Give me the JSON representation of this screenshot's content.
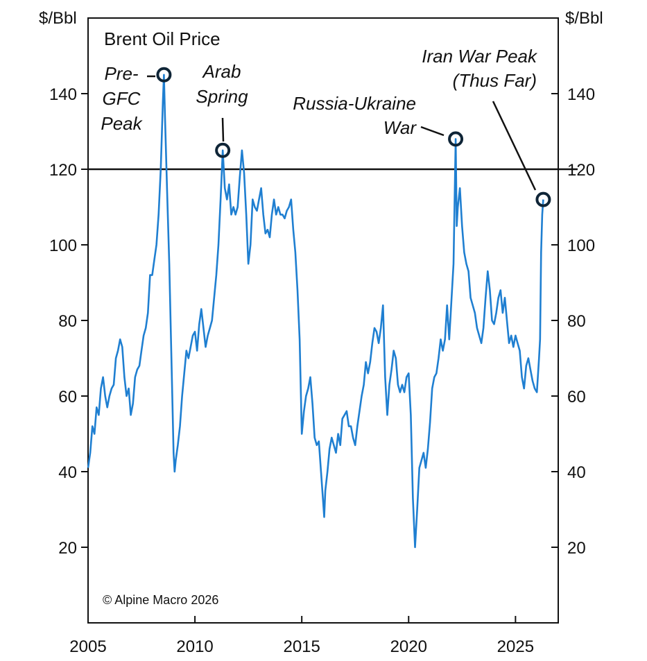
{
  "chart_data": {
    "type": "line",
    "title": "Brent Oil Price",
    "ylabel_left": "$/Bbl",
    "ylabel_right": "$/Bbl",
    "xlim": [
      2005.0,
      2027.0
    ],
    "ylim": [
      0,
      160
    ],
    "x_ticks": [
      2005,
      2010,
      2015,
      2020,
      2025
    ],
    "y_ticks": [
      20,
      40,
      60,
      80,
      100,
      120,
      140
    ],
    "reference_line": {
      "y": 120
    },
    "grid": false,
    "line_color": "#1f7fd1",
    "series": [
      {
        "points": [
          [
            2005.0,
            41
          ],
          [
            2005.1,
            45
          ],
          [
            2005.2,
            52
          ],
          [
            2005.3,
            50
          ],
          [
            2005.4,
            57
          ],
          [
            2005.5,
            55
          ],
          [
            2005.6,
            62
          ],
          [
            2005.7,
            65
          ],
          [
            2005.8,
            60
          ],
          [
            2005.9,
            57
          ],
          [
            2006.0,
            60
          ],
          [
            2006.1,
            62
          ],
          [
            2006.2,
            63
          ],
          [
            2006.3,
            70
          ],
          [
            2006.4,
            72
          ],
          [
            2006.5,
            75
          ],
          [
            2006.6,
            73
          ],
          [
            2006.7,
            65
          ],
          [
            2006.8,
            60
          ],
          [
            2006.9,
            62
          ],
          [
            2007.0,
            55
          ],
          [
            2007.1,
            58
          ],
          [
            2007.2,
            65
          ],
          [
            2007.3,
            67
          ],
          [
            2007.4,
            68
          ],
          [
            2007.5,
            72
          ],
          [
            2007.6,
            76
          ],
          [
            2007.7,
            78
          ],
          [
            2007.8,
            82
          ],
          [
            2007.9,
            92
          ],
          [
            2008.0,
            92
          ],
          [
            2008.1,
            96
          ],
          [
            2008.2,
            100
          ],
          [
            2008.3,
            108
          ],
          [
            2008.4,
            120
          ],
          [
            2008.5,
            138
          ],
          [
            2008.55,
            145
          ],
          [
            2008.6,
            134
          ],
          [
            2008.7,
            114
          ],
          [
            2008.8,
            95
          ],
          [
            2008.9,
            70
          ],
          [
            2009.0,
            45
          ],
          [
            2009.05,
            40
          ],
          [
            2009.1,
            43
          ],
          [
            2009.2,
            47
          ],
          [
            2009.3,
            52
          ],
          [
            2009.4,
            60
          ],
          [
            2009.5,
            66
          ],
          [
            2009.6,
            72
          ],
          [
            2009.7,
            70
          ],
          [
            2009.8,
            73
          ],
          [
            2009.9,
            76
          ],
          [
            2010.0,
            77
          ],
          [
            2010.1,
            72
          ],
          [
            2010.2,
            79
          ],
          [
            2010.3,
            83
          ],
          [
            2010.4,
            78
          ],
          [
            2010.5,
            73
          ],
          [
            2010.6,
            76
          ],
          [
            2010.7,
            78
          ],
          [
            2010.8,
            80
          ],
          [
            2010.9,
            86
          ],
          [
            2011.0,
            92
          ],
          [
            2011.1,
            100
          ],
          [
            2011.2,
            112
          ],
          [
            2011.3,
            125
          ],
          [
            2011.4,
            115
          ],
          [
            2011.5,
            112
          ],
          [
            2011.6,
            116
          ],
          [
            2011.7,
            108
          ],
          [
            2011.8,
            110
          ],
          [
            2011.9,
            108
          ],
          [
            2012.0,
            110
          ],
          [
            2012.1,
            118
          ],
          [
            2012.2,
            125
          ],
          [
            2012.3,
            119
          ],
          [
            2012.4,
            108
          ],
          [
            2012.5,
            95
          ],
          [
            2012.6,
            100
          ],
          [
            2012.7,
            112
          ],
          [
            2012.8,
            110
          ],
          [
            2012.9,
            109
          ],
          [
            2013.0,
            112
          ],
          [
            2013.1,
            115
          ],
          [
            2013.2,
            108
          ],
          [
            2013.3,
            103
          ],
          [
            2013.4,
            104
          ],
          [
            2013.5,
            102
          ],
          [
            2013.6,
            108
          ],
          [
            2013.7,
            112
          ],
          [
            2013.8,
            108
          ],
          [
            2013.9,
            110
          ],
          [
            2014.0,
            108
          ],
          [
            2014.1,
            108
          ],
          [
            2014.2,
            107
          ],
          [
            2014.3,
            109
          ],
          [
            2014.4,
            110
          ],
          [
            2014.5,
            112
          ],
          [
            2014.6,
            104
          ],
          [
            2014.7,
            98
          ],
          [
            2014.8,
            88
          ],
          [
            2014.9,
            75
          ],
          [
            2015.0,
            50
          ],
          [
            2015.1,
            56
          ],
          [
            2015.2,
            60
          ],
          [
            2015.3,
            62
          ],
          [
            2015.4,
            65
          ],
          [
            2015.5,
            58
          ],
          [
            2015.6,
            49
          ],
          [
            2015.7,
            47
          ],
          [
            2015.8,
            48
          ],
          [
            2015.9,
            40
          ],
          [
            2016.0,
            32
          ],
          [
            2016.05,
            28
          ],
          [
            2016.1,
            35
          ],
          [
            2016.2,
            40
          ],
          [
            2016.3,
            46
          ],
          [
            2016.4,
            49
          ],
          [
            2016.5,
            47
          ],
          [
            2016.6,
            45
          ],
          [
            2016.7,
            50
          ],
          [
            2016.8,
            47
          ],
          [
            2016.9,
            54
          ],
          [
            2017.0,
            55
          ],
          [
            2017.1,
            56
          ],
          [
            2017.2,
            52
          ],
          [
            2017.3,
            52
          ],
          [
            2017.4,
            49
          ],
          [
            2017.5,
            47
          ],
          [
            2017.6,
            52
          ],
          [
            2017.7,
            56
          ],
          [
            2017.8,
            60
          ],
          [
            2017.9,
            63
          ],
          [
            2018.0,
            69
          ],
          [
            2018.1,
            66
          ],
          [
            2018.2,
            69
          ],
          [
            2018.3,
            74
          ],
          [
            2018.4,
            78
          ],
          [
            2018.5,
            77
          ],
          [
            2018.6,
            74
          ],
          [
            2018.7,
            78
          ],
          [
            2018.8,
            84
          ],
          [
            2018.9,
            65
          ],
          [
            2019.0,
            55
          ],
          [
            2019.1,
            63
          ],
          [
            2019.2,
            67
          ],
          [
            2019.3,
            72
          ],
          [
            2019.4,
            70
          ],
          [
            2019.5,
            63
          ],
          [
            2019.6,
            61
          ],
          [
            2019.7,
            63
          ],
          [
            2019.8,
            61
          ],
          [
            2019.9,
            65
          ],
          [
            2020.0,
            66
          ],
          [
            2020.1,
            55
          ],
          [
            2020.2,
            33
          ],
          [
            2020.3,
            20
          ],
          [
            2020.4,
            30
          ],
          [
            2020.5,
            41
          ],
          [
            2020.6,
            43
          ],
          [
            2020.7,
            45
          ],
          [
            2020.8,
            41
          ],
          [
            2020.9,
            46
          ],
          [
            2021.0,
            53
          ],
          [
            2021.1,
            62
          ],
          [
            2021.2,
            65
          ],
          [
            2021.3,
            66
          ],
          [
            2021.4,
            70
          ],
          [
            2021.5,
            75
          ],
          [
            2021.6,
            72
          ],
          [
            2021.7,
            75
          ],
          [
            2021.8,
            84
          ],
          [
            2021.9,
            75
          ],
          [
            2022.0,
            85
          ],
          [
            2022.1,
            95
          ],
          [
            2022.2,
            128
          ],
          [
            2022.25,
            105
          ],
          [
            2022.3,
            110
          ],
          [
            2022.4,
            115
          ],
          [
            2022.5,
            105
          ],
          [
            2022.6,
            98
          ],
          [
            2022.7,
            95
          ],
          [
            2022.8,
            93
          ],
          [
            2022.9,
            86
          ],
          [
            2023.0,
            84
          ],
          [
            2023.1,
            82
          ],
          [
            2023.2,
            78
          ],
          [
            2023.3,
            76
          ],
          [
            2023.4,
            74
          ],
          [
            2023.5,
            78
          ],
          [
            2023.6,
            86
          ],
          [
            2023.7,
            93
          ],
          [
            2023.8,
            88
          ],
          [
            2023.9,
            80
          ],
          [
            2024.0,
            79
          ],
          [
            2024.1,
            82
          ],
          [
            2024.2,
            86
          ],
          [
            2024.3,
            88
          ],
          [
            2024.4,
            82
          ],
          [
            2024.5,
            86
          ],
          [
            2024.6,
            80
          ],
          [
            2024.7,
            74
          ],
          [
            2024.8,
            76
          ],
          [
            2024.9,
            73
          ],
          [
            2025.0,
            76
          ],
          [
            2025.1,
            74
          ],
          [
            2025.2,
            72
          ],
          [
            2025.3,
            65
          ],
          [
            2025.4,
            62
          ],
          [
            2025.5,
            68
          ],
          [
            2025.6,
            70
          ],
          [
            2025.7,
            67
          ],
          [
            2025.8,
            64
          ],
          [
            2025.9,
            62
          ],
          [
            2026.0,
            61
          ],
          [
            2026.1,
            70
          ],
          [
            2026.15,
            75
          ],
          [
            2026.2,
            98
          ],
          [
            2026.25,
            108
          ],
          [
            2026.3,
            112
          ]
        ]
      }
    ],
    "annotations": [
      {
        "lines": [
          "Pre-",
          "GFC",
          "Peak"
        ],
        "x": 2008.55,
        "y": 145
      },
      {
        "lines": [
          "Arab",
          "Spring"
        ],
        "x": 2011.3,
        "y": 125
      },
      {
        "lines": [
          "Russia-Ukraine",
          "War"
        ],
        "x": 2022.2,
        "y": 128
      },
      {
        "lines": [
          "Iran War Peak",
          "(Thus Far)"
        ],
        "x": 2026.3,
        "y": 112
      }
    ],
    "credit": "© Alpine Macro 2026"
  }
}
